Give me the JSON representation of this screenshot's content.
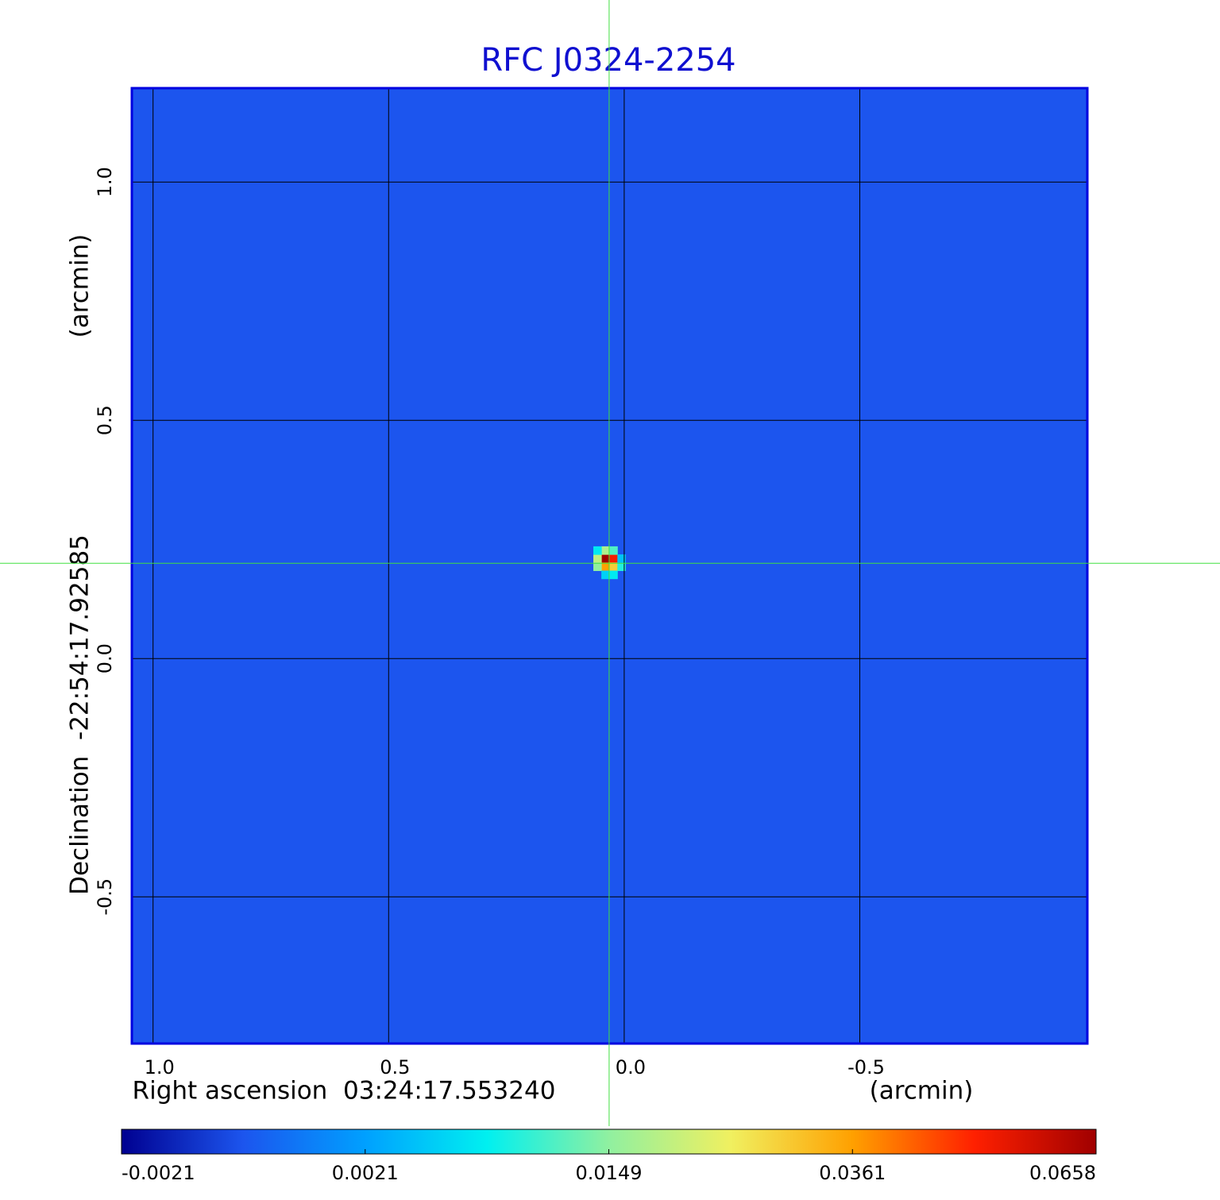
{
  "chart_data": {
    "type": "image",
    "title": "RFC J0324-2254",
    "xlabel": "Right ascension  03:24:17.553240",
    "xunit": "(arcmin)",
    "ylabel": "Declination  -22:54:17.92585",
    "yunit": "(arcmin)",
    "xlim": [
      1.045,
      -0.983
    ],
    "ylim": [
      -0.808,
      1.197
    ],
    "xticks": [
      {
        "value": 1,
        "label": "1.0"
      },
      0.5,
      {
        "value": 0,
        "label": "0.0"
      },
      -0.5
    ],
    "yticks": [
      {
        "value": 1,
        "label": "1.0"
      },
      0.5,
      {
        "value": 0,
        "label": "0.0"
      },
      -0.5
    ],
    "grid": true,
    "frame_color": "#0000e0",
    "background_value": 0,
    "pixel_size": 0.017,
    "pixels": [
      {
        "x": 0.04,
        "y": 0.21,
        "value": 0.0658
      },
      {
        "x": 0.023,
        "y": 0.21,
        "value": 0.052
      },
      {
        "x": 0.04,
        "y": 0.193,
        "value": 0.036
      },
      {
        "x": 0.023,
        "y": 0.193,
        "value": 0.03
      },
      {
        "x": 0.057,
        "y": 0.21,
        "value": 0.02
      },
      {
        "x": 0.04,
        "y": 0.227,
        "value": 0.018
      },
      {
        "x": 0.023,
        "y": 0.227,
        "value": 0.012
      },
      {
        "x": 0.057,
        "y": 0.193,
        "value": 0.015
      },
      {
        "x": 0.006,
        "y": 0.193,
        "value": 0.01
      },
      {
        "x": 0.04,
        "y": 0.176,
        "value": 0.006
      },
      {
        "x": 0.023,
        "y": 0.176,
        "value": 0.008
      },
      {
        "x": 0.057,
        "y": 0.227,
        "value": 0.008
      },
      {
        "x": 0.006,
        "y": 0.21,
        "value": 0.005
      }
    ],
    "crosshair": {
      "x": 0.032,
      "y": 0.2,
      "color": "#40e040"
    },
    "colormap": [
      "#000090",
      "#1c55ee",
      "#00a0ff",
      "#00f0f0",
      "#90f0a0",
      "#f0f060",
      "#ffa000",
      "#ff2000",
      "#a00000"
    ],
    "colorbar": {
      "ticks": [
        -0.0021,
        0.0021,
        0.0149,
        0.0361,
        0.0658
      ],
      "lim": [
        -0.0021,
        0.0658
      ]
    }
  }
}
